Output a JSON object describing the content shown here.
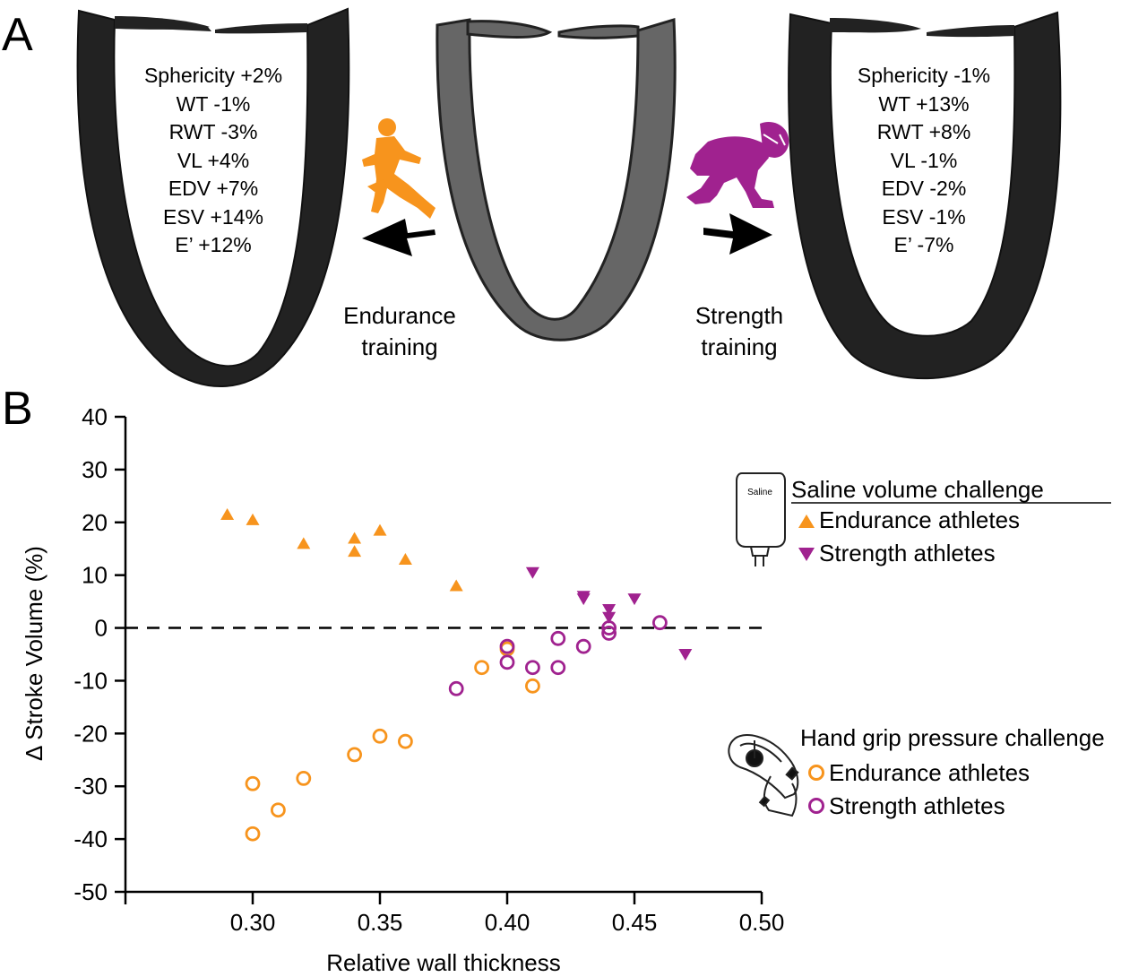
{
  "panel_a": {
    "letter": "A",
    "endurance_stats": [
      "Sphericity +2%",
      "WT -1%",
      "RWT -3%",
      "VL +4%",
      "EDV +7%",
      "ESV +14%",
      "E’ +12%"
    ],
    "strength_stats": [
      "Sphericity -1%",
      "WT +13%",
      "RWT +8%",
      "VL -1%",
      "EDV -2%",
      "ESV -1%",
      "E’ -7%"
    ],
    "endurance_caption": [
      "Endurance",
      "training"
    ],
    "strength_caption": [
      "Strength",
      "training"
    ],
    "endurance_color": "#F7941D",
    "strength_color": "#A0228F",
    "heart_dark_color": "#222222",
    "heart_baseline_color": "#666666",
    "icons": [
      "runner-icon",
      "football-lineman-icon",
      "arrow-left-icon",
      "arrow-right-icon"
    ]
  },
  "panel_b": {
    "letter": "B",
    "legend": {
      "saline_title": "Saline volume challenge",
      "saline_bag_label": "Saline",
      "handgrip_title": "Hand grip pressure challenge",
      "endurance_label": "Endurance athletes",
      "strength_label": "Strength athletes",
      "icons": [
        "saline-bag-icon",
        "hand-grip-icon"
      ]
    }
  },
  "chart_data": {
    "type": "scatter",
    "xlabel": "Relative wall thickness",
    "ylabel": "Δ Stroke Volume (%)",
    "xlim": [
      0.25,
      0.5
    ],
    "ylim": [
      -50,
      40
    ],
    "xticks": [
      0.3,
      0.35,
      0.4,
      0.45,
      0.5
    ],
    "xtick_labels": [
      "0.30",
      "0.35",
      "0.40",
      "0.45",
      "0.50"
    ],
    "yticks": [
      40,
      30,
      20,
      10,
      0,
      -10,
      -20,
      -30,
      -40,
      -50
    ],
    "ytick_labels": [
      "40",
      "30",
      "20",
      "10",
      "0",
      "-10",
      "-20",
      "-30",
      "-40",
      "-50"
    ],
    "reference_line": {
      "y": 0,
      "style": "dashed"
    },
    "grid": false,
    "series": [
      {
        "name": "Endurance athletes",
        "challenge": "Saline volume challenge",
        "marker": "triangle-up-filled",
        "color": "#F7941D",
        "points": [
          [
            0.29,
            21.5
          ],
          [
            0.3,
            20.5
          ],
          [
            0.32,
            16
          ],
          [
            0.34,
            17
          ],
          [
            0.34,
            14.5
          ],
          [
            0.35,
            18.5
          ],
          [
            0.36,
            13
          ],
          [
            0.38,
            8
          ]
        ]
      },
      {
        "name": "Strength athletes",
        "challenge": "Saline volume challenge",
        "marker": "triangle-down-filled",
        "color": "#A0228F",
        "points": [
          [
            0.41,
            10.5
          ],
          [
            0.43,
            6
          ],
          [
            0.43,
            5.5
          ],
          [
            0.44,
            3.5
          ],
          [
            0.44,
            2
          ],
          [
            0.45,
            5.5
          ],
          [
            0.47,
            -5
          ]
        ]
      },
      {
        "name": "Endurance athletes",
        "challenge": "Hand grip pressure challenge",
        "marker": "circle-open",
        "color": "#F7941D",
        "points": [
          [
            0.3,
            -29.5
          ],
          [
            0.3,
            -39
          ],
          [
            0.31,
            -34.5
          ],
          [
            0.32,
            -28.5
          ],
          [
            0.34,
            -24
          ],
          [
            0.35,
            -20.5
          ],
          [
            0.36,
            -21.5
          ],
          [
            0.39,
            -7.5
          ],
          [
            0.4,
            -4
          ],
          [
            0.41,
            -11
          ]
        ]
      },
      {
        "name": "Strength athletes",
        "challenge": "Hand grip pressure challenge",
        "marker": "circle-open",
        "color": "#A0228F",
        "points": [
          [
            0.38,
            -11.5
          ],
          [
            0.4,
            -6.5
          ],
          [
            0.4,
            -3.5
          ],
          [
            0.41,
            -7.5
          ],
          [
            0.42,
            -7.5
          ],
          [
            0.42,
            -2
          ],
          [
            0.43,
            -3.5
          ],
          [
            0.44,
            -1
          ],
          [
            0.44,
            0
          ],
          [
            0.46,
            1
          ]
        ]
      }
    ]
  }
}
